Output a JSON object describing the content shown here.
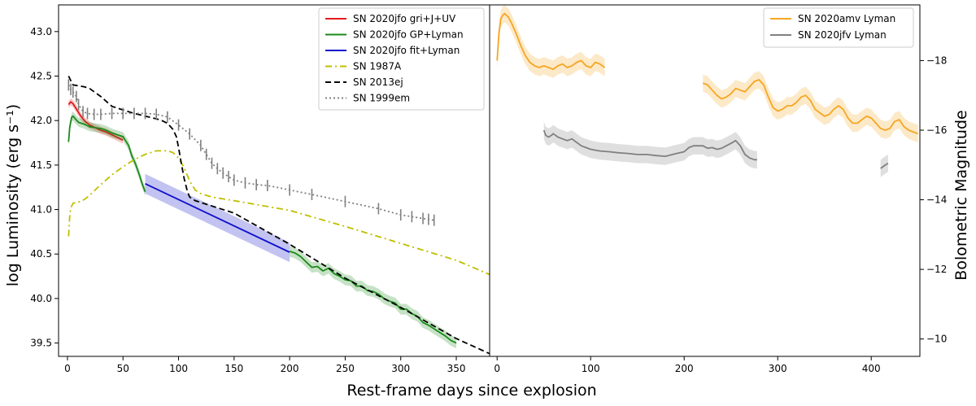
{
  "chart_data": {
    "type": "line",
    "xlabel": "Rest-frame days since explosion",
    "ylabel_left": "log Luminosity (erg s⁻¹)",
    "ylabel_right": "Bolometric Magnitude",
    "panels": [
      {
        "id": "left",
        "xlim": [
          -8,
          380
        ],
        "ylim": [
          39.35,
          43.3
        ],
        "xticks": [
          0,
          50,
          100,
          150,
          200,
          250,
          300,
          350
        ],
        "yticks": [
          39.5,
          40.0,
          40.5,
          41.0,
          41.5,
          42.0,
          42.5,
          43.0
        ],
        "ytick_labels": [
          "39.5",
          "40.0",
          "40.5",
          "41.0",
          "41.5",
          "42.0",
          "42.5",
          "43.0"
        ],
        "legend": "top-right",
        "series": [
          {
            "name": "SN 2020jfo gri+J+UV",
            "color": "#e41a1c",
            "style": "solid",
            "band": 0.04,
            "x": [
              1,
              3,
              5,
              8,
              12,
              16,
              20,
              25,
              30,
              35,
              40,
              45,
              50
            ],
            "y": [
              42.18,
              42.21,
              42.19,
              42.13,
              42.05,
              41.99,
              41.95,
              41.92,
              41.89,
              41.87,
              41.84,
              41.81,
              41.78
            ]
          },
          {
            "name": "SN 2020jfo GP+Lyman",
            "color": "#1a8a1a",
            "style": "solid",
            "band": 0.05,
            "x": [
              1,
              2,
              3,
              4,
              5,
              7,
              10,
              15,
              20,
              25,
              30,
              35,
              40,
              45,
              50,
              55,
              58,
              61,
              63,
              65,
              67,
              70
            ],
            "y": [
              41.76,
              41.92,
              41.99,
              42.04,
              42.05,
              42.02,
              41.98,
              41.96,
              41.93,
              41.92,
              41.91,
              41.89,
              41.86,
              41.84,
              41.82,
              41.72,
              41.6,
              41.52,
              41.45,
              41.38,
              41.3,
              41.2
            ]
          },
          {
            "name": "SN 2020jfo fit+Lyman",
            "color": "#1010cc",
            "style": "solid",
            "band": 0.11,
            "x": [
              70,
              200
            ],
            "y": [
              41.29,
              40.52
            ]
          },
          {
            "name": "",
            "color": "#1a8a1a",
            "style": "solid",
            "band": 0.06,
            "x": [
              200,
              205,
              210,
              215,
              220,
              225,
              230,
              235,
              240,
              245,
              250,
              255,
              260,
              265,
              270,
              275,
              280,
              285,
              290,
              295,
              300,
              305,
              310,
              315,
              320,
              325,
              330,
              335,
              340,
              345,
              350
            ],
            "y": [
              40.53,
              40.51,
              40.47,
              40.41,
              40.35,
              40.36,
              40.31,
              40.34,
              40.28,
              40.25,
              40.21,
              40.2,
              40.14,
              40.14,
              40.09,
              40.08,
              40.05,
              40.0,
              39.97,
              39.95,
              39.88,
              39.88,
              39.83,
              39.8,
              39.73,
              39.7,
              39.66,
              39.62,
              39.58,
              39.53,
              39.5
            ]
          },
          {
            "name": "SN 1987A",
            "color": "#bfbf00",
            "style": "dashdot",
            "band": 0,
            "x": [
              1,
              2,
              3,
              5,
              8,
              12,
              16,
              20,
              30,
              40,
              50,
              60,
              70,
              80,
              90,
              95,
              100,
              105,
              110,
              115,
              120,
              130,
              150,
              200,
              250,
              300,
              350,
              380
            ],
            "y": [
              40.7,
              40.92,
              41.02,
              41.07,
              41.08,
              41.09,
              41.12,
              41.16,
              41.28,
              41.39,
              41.48,
              41.56,
              41.62,
              41.66,
              41.66,
              41.64,
              41.58,
              41.47,
              41.32,
              41.22,
              41.18,
              41.14,
              41.1,
              40.99,
              40.81,
              40.62,
              40.43,
              40.27
            ]
          },
          {
            "name": "SN 2013ej",
            "color": "#000000",
            "style": "dashed",
            "band": 0,
            "x": [
              1,
              3,
              5,
              10,
              15,
              20,
              30,
              40,
              50,
              60,
              70,
              80,
              85,
              90,
              95,
              98,
              100,
              102,
              105,
              108,
              110,
              115,
              120,
              150,
              200,
              250,
              300,
              350,
              380
            ],
            "y": [
              42.5,
              42.45,
              42.4,
              42.39,
              42.38,
              42.36,
              42.27,
              42.16,
              42.12,
              42.08,
              42.05,
              42.02,
              42.0,
              41.97,
              41.9,
              41.82,
              41.7,
              41.55,
              41.35,
              41.2,
              41.14,
              41.1,
              41.08,
              40.96,
              40.61,
              40.23,
              39.9,
              39.55,
              39.38
            ]
          },
          {
            "name": "SN 1999em",
            "color": "#808080",
            "style": "dotted",
            "band": 0,
            "errorbars": true,
            "x": [
              1,
              3,
              5,
              8,
              10,
              14,
              18,
              24,
              30,
              40,
              50,
              60,
              70,
              80,
              90,
              100,
              110,
              120,
              125,
              130,
              135,
              140,
              145,
              150,
              160,
              170,
              180,
              200,
              220,
              250,
              280,
              300,
              310,
              320,
              325,
              330
            ],
            "y": [
              42.4,
              42.35,
              42.32,
              42.27,
              42.18,
              42.1,
              42.08,
              42.07,
              42.07,
              42.08,
              42.08,
              42.08,
              42.08,
              42.07,
              42.04,
              41.95,
              41.85,
              41.72,
              41.62,
              41.52,
              41.46,
              41.41,
              41.37,
              41.33,
              41.3,
              41.28,
              41.27,
              41.22,
              41.17,
              41.09,
              41.01,
              40.94,
              40.92,
              40.9,
              40.89,
              40.88
            ]
          }
        ]
      },
      {
        "id": "right",
        "xlim": [
          -8,
          452
        ],
        "ylim": [
          -9.5,
          -19.6
        ],
        "xticks": [
          0,
          100,
          200,
          300,
          400
        ],
        "yticks": [
          -10,
          -12,
          -14,
          -16,
          -18
        ],
        "ytick_labels": [
          "−10",
          "−12",
          "−14",
          "−16",
          "−18"
        ],
        "legend": "top-right",
        "series": [
          {
            "name": "SN 2020amv Lyman",
            "color": "#f5a623",
            "style": "solid",
            "band": 0.25,
            "segments": [
              {
                "x": [
                  0,
                  2,
                  4,
                  6,
                  8,
                  10,
                  12,
                  15,
                  20,
                  25,
                  30,
                  35,
                  40,
                  45,
                  50,
                  55,
                  60,
                  65,
                  70,
                  75,
                  80,
                  85,
                  90,
                  95,
                  100,
                  105,
                  110,
                  115
                ],
                "y": [
                  -18.0,
                  -18.8,
                  -19.2,
                  -19.3,
                  -19.35,
                  -19.3,
                  -19.25,
                  -19.1,
                  -18.8,
                  -18.45,
                  -18.15,
                  -17.95,
                  -17.85,
                  -17.8,
                  -17.85,
                  -17.8,
                  -17.75,
                  -17.85,
                  -17.9,
                  -17.8,
                  -17.85,
                  -17.95,
                  -18.0,
                  -17.85,
                  -17.8,
                  -17.95,
                  -17.9,
                  -17.8
                ]
              },
              {
                "x": [
                  220,
                  225,
                  230,
                  235,
                  240,
                  245,
                  250,
                  255,
                  260,
                  265,
                  270,
                  275,
                  280,
                  285,
                  290,
                  295,
                  300,
                  305,
                  310,
                  315,
                  320,
                  325,
                  330,
                  335,
                  340,
                  345,
                  350,
                  355,
                  360,
                  365,
                  370,
                  375,
                  380,
                  385,
                  390,
                  395,
                  400,
                  405,
                  410,
                  415,
                  420,
                  425,
                  430,
                  435,
                  440,
                  445,
                  450
                ],
                "y": [
                  -17.35,
                  -17.3,
                  -17.15,
                  -17.0,
                  -16.9,
                  -16.95,
                  -17.05,
                  -17.2,
                  -17.15,
                  -17.1,
                  -17.25,
                  -17.4,
                  -17.45,
                  -17.3,
                  -16.95,
                  -16.65,
                  -16.55,
                  -16.6,
                  -16.7,
                  -16.7,
                  -16.8,
                  -16.95,
                  -17.0,
                  -16.85,
                  -16.6,
                  -16.5,
                  -16.4,
                  -16.45,
                  -16.6,
                  -16.7,
                  -16.6,
                  -16.35,
                  -16.2,
                  -16.2,
                  -16.3,
                  -16.4,
                  -16.35,
                  -16.2,
                  -16.05,
                  -16.0,
                  -16.05,
                  -16.25,
                  -16.3,
                  -16.1,
                  -16.0,
                  -15.95,
                  -15.9
                ]
              }
            ]
          },
          {
            "name": "SN 2020jfv Lyman",
            "color": "#808080",
            "style": "solid",
            "band": 0.25,
            "segments": [
              {
                "x": [
                  50,
                  52,
                  55,
                  58,
                  60,
                  65,
                  70,
                  75,
                  80,
                  85,
                  90,
                  95,
                  100,
                  110,
                  120,
                  130,
                  140,
                  150,
                  160,
                  170,
                  180,
                  190,
                  200,
                  205,
                  210,
                  215,
                  220,
                  225,
                  230,
                  235,
                  240,
                  245,
                  250,
                  255,
                  260,
                  265,
                  270,
                  275,
                  278
                ],
                "y": [
                  -16.0,
                  -15.85,
                  -15.8,
                  -15.85,
                  -15.9,
                  -15.8,
                  -15.75,
                  -15.7,
                  -15.75,
                  -15.65,
                  -15.55,
                  -15.5,
                  -15.45,
                  -15.4,
                  -15.38,
                  -15.35,
                  -15.33,
                  -15.3,
                  -15.3,
                  -15.27,
                  -15.25,
                  -15.32,
                  -15.38,
                  -15.5,
                  -15.55,
                  -15.55,
                  -15.55,
                  -15.48,
                  -15.5,
                  -15.45,
                  -15.48,
                  -15.55,
                  -15.62,
                  -15.7,
                  -15.55,
                  -15.3,
                  -15.2,
                  -15.15,
                  -15.15
                ]
              },
              {
                "x": [
                  410,
                  414,
                  418
                ],
                "y": [
                  -14.9,
                  -14.98,
                  -15.05
                ]
              }
            ]
          }
        ]
      }
    ]
  }
}
